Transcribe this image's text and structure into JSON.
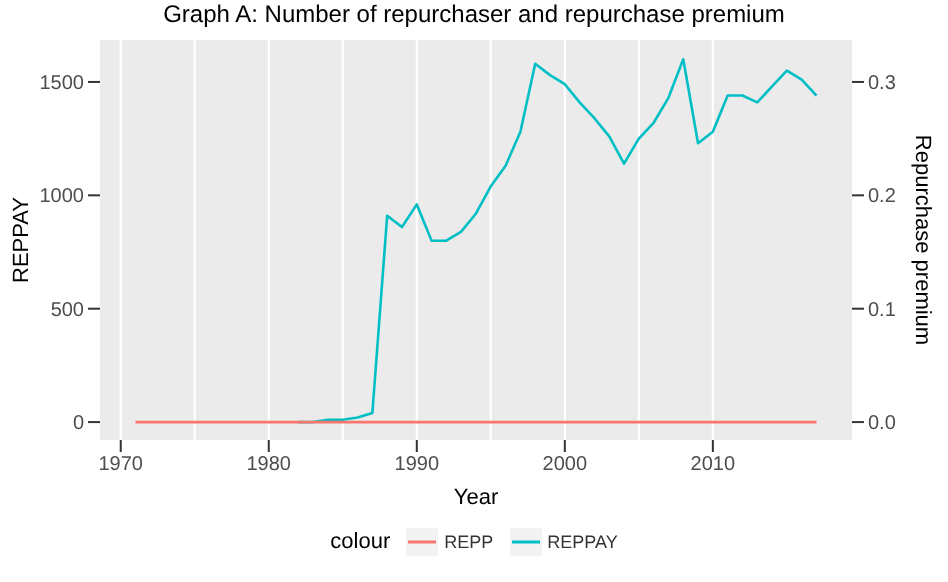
{
  "chart_data": {
    "type": "line",
    "title": "Graph A: Number of repurchaser and repurchase premium",
    "xlabel": "Year",
    "ylabel": "REPPAY",
    "y2label": "Repurchase premium",
    "legend_title": "colour",
    "x": [
      1971,
      1972,
      1973,
      1974,
      1975,
      1976,
      1977,
      1978,
      1979,
      1980,
      1981,
      1982,
      1983,
      1984,
      1985,
      1986,
      1987,
      1988,
      1989,
      1990,
      1991,
      1992,
      1993,
      1994,
      1995,
      1996,
      1997,
      1998,
      1999,
      2000,
      2001,
      2002,
      2003,
      2004,
      2005,
      2006,
      2007,
      2008,
      2009,
      2010,
      2011,
      2012,
      2013,
      2014,
      2015,
      2016,
      2017
    ],
    "series": [
      {
        "name": "REPP",
        "color": "#f8766d",
        "values": [
          0,
          0,
          0,
          0,
          0,
          0,
          0,
          0,
          0,
          0,
          0,
          0,
          0,
          0,
          0,
          0,
          0,
          0,
          0,
          0,
          0,
          0,
          0,
          0,
          0,
          0,
          0,
          0,
          0,
          0,
          0,
          0,
          0,
          0,
          0,
          0,
          0,
          0,
          0,
          0,
          0,
          0,
          0,
          0,
          0,
          0,
          0
        ]
      },
      {
        "name": "REPPAY",
        "color": "#00bfc4",
        "values": [
          null,
          null,
          null,
          null,
          null,
          null,
          null,
          null,
          null,
          null,
          null,
          0,
          0,
          10,
          10,
          20,
          40,
          910,
          860,
          960,
          800,
          800,
          840,
          920,
          1040,
          1130,
          1280,
          1580,
          1530,
          1490,
          1410,
          1340,
          1260,
          1140,
          1250,
          1320,
          1430,
          1600,
          1230,
          1280,
          1440,
          1440,
          1410,
          1480,
          1550,
          1510,
          1440
        ]
      }
    ],
    "xlim": [
      1968.6,
      2019.4
    ],
    "xticks": [
      1970,
      1980,
      1990,
      2000,
      2010
    ],
    "ylim": [
      -79,
      1685
    ],
    "yticks": [
      0,
      500,
      1000,
      1500
    ],
    "y2lim": [
      -0.0158,
      0.337
    ],
    "y2ticks": [
      {
        "value": 0,
        "label": "0.0"
      },
      {
        "value": 0.1,
        "label": "0.1"
      },
      {
        "value": 0.2,
        "label": "0.2"
      },
      {
        "value": 0.3,
        "label": "0.3"
      }
    ],
    "grid": true,
    "legend": "bottom",
    "marker": "none",
    "line_style": "solid"
  }
}
